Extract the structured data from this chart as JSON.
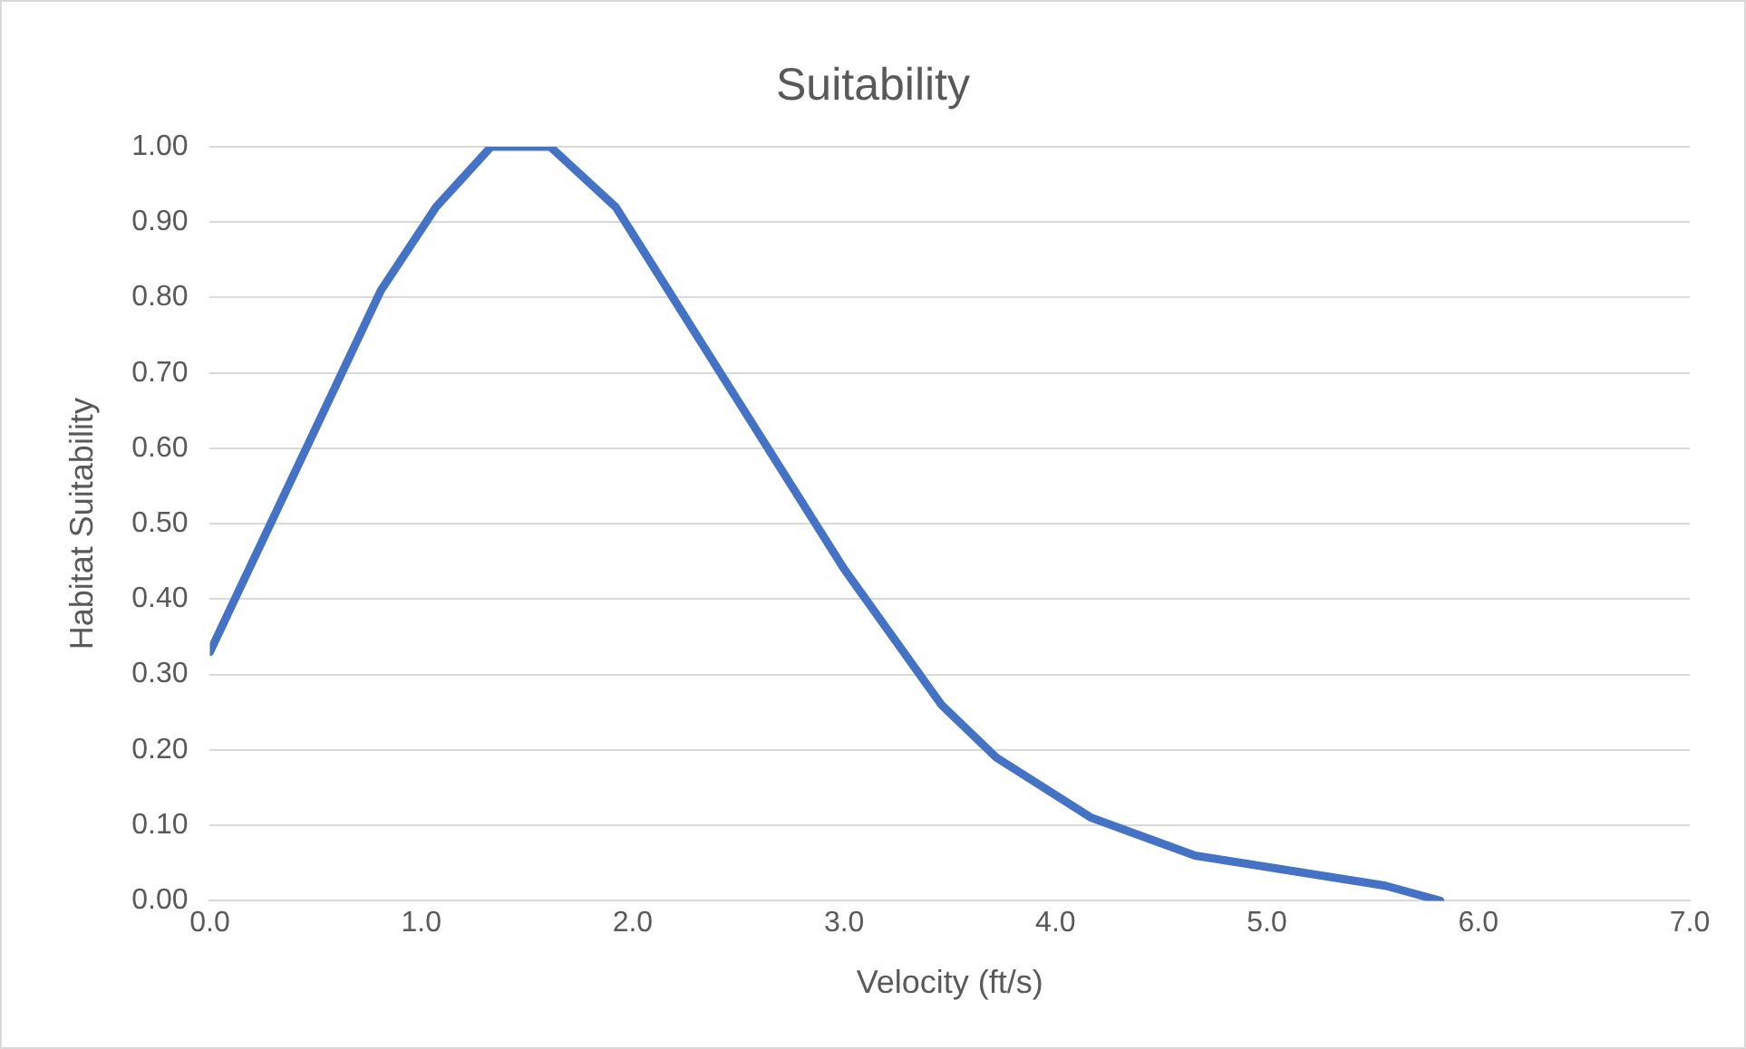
{
  "chart_data": {
    "type": "line",
    "title": "Suitability",
    "xlabel": "Velocity (ft/s)",
    "ylabel": "Habitat Suitability",
    "x": [
      0,
      0.81,
      1.07,
      1.33,
      1.61,
      1.92,
      3.0,
      3.46,
      3.72,
      4.17,
      4.66,
      5.56,
      5.82
    ],
    "series": [
      {
        "color": "#4472c4",
        "values": [
          0.33,
          0.81,
          0.92,
          1.0,
          1.0,
          0.92,
          0.44,
          0.26,
          0.19,
          0.11,
          0.06,
          0.02,
          0.0
        ]
      }
    ],
    "xlim": [
      0,
      7
    ],
    "xticks": [
      {
        "value": 0,
        "label": "0.0"
      },
      {
        "value": 1,
        "label": "1.0"
      },
      {
        "value": 2,
        "label": "2.0"
      },
      {
        "value": 3,
        "label": "3.0"
      },
      {
        "value": 4,
        "label": "4.0"
      },
      {
        "value": 5,
        "label": "5.0"
      },
      {
        "value": 6,
        "label": "6.0"
      },
      {
        "value": 7,
        "label": "7.0"
      }
    ],
    "ylim": [
      0,
      1
    ],
    "yticks": [
      {
        "value": 0,
        "label": "0.00"
      },
      {
        "value": 0.1,
        "label": "0.10"
      },
      {
        "value": 0.2,
        "label": "0.20"
      },
      {
        "value": 0.3,
        "label": "0.30"
      },
      {
        "value": 0.4,
        "label": "0.40"
      },
      {
        "value": 0.5,
        "label": "0.50"
      },
      {
        "value": 0.6,
        "label": "0.60"
      },
      {
        "value": 0.7,
        "label": "0.70"
      },
      {
        "value": 0.8,
        "label": "0.80"
      },
      {
        "value": 0.9,
        "label": "0.90"
      },
      {
        "value": 1,
        "label": "1.00"
      }
    ],
    "grid": "y",
    "legend": false,
    "marker": "none",
    "line_style": "solid"
  }
}
